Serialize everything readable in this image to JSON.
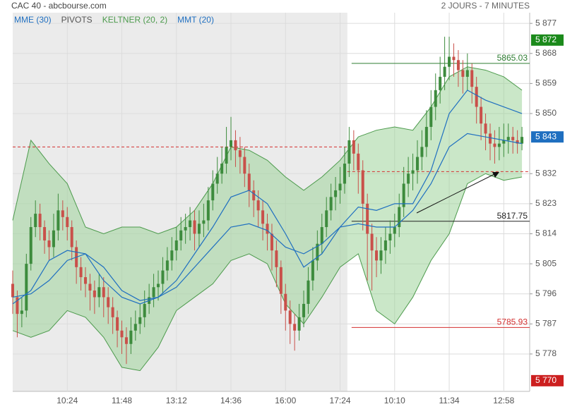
{
  "chart_data": {
    "type": "candlestick",
    "title": "CAC 40 - abcbourse.com",
    "subtitle": "2 JOURS - 7 MINUTES",
    "xlim": [
      0,
      113.7
    ],
    "ylim": [
      5766.8,
      5880.2
    ],
    "xticks": [
      {
        "value": 12,
        "label": "10:24"
      },
      {
        "value": 24,
        "label": "11:48"
      },
      {
        "value": 36,
        "label": "13:12"
      },
      {
        "value": 48,
        "label": "14:36"
      },
      {
        "value": 60,
        "label": "16:00"
      },
      {
        "value": 72,
        "label": "17:24"
      },
      {
        "value": 84,
        "label": "10:10"
      },
      {
        "value": 96,
        "label": "11:34"
      },
      {
        "value": 108,
        "label": "12:58"
      }
    ],
    "yticks": [
      {
        "value": 5778,
        "label": "5 778"
      },
      {
        "value": 5787,
        "label": "5 787"
      },
      {
        "value": 5796,
        "label": "5 796"
      },
      {
        "value": 5805,
        "label": "5 805"
      },
      {
        "value": 5814,
        "label": "5 814"
      },
      {
        "value": 5823,
        "label": "5 823"
      },
      {
        "value": 5832,
        "label": "5 832"
      },
      {
        "value": 5850,
        "label": "5 850"
      },
      {
        "value": 5859,
        "label": "5 859"
      },
      {
        "value": 5868,
        "label": "5 868"
      },
      {
        "value": 5877,
        "label": "5 877"
      }
    ],
    "grid": true,
    "up_color": "#3d8b3d",
    "down_color": "#c9504a",
    "candles": {
      "open": [
        5799,
        5795,
        5790,
        5791,
        5805,
        5816,
        5820,
        5816,
        5812,
        5810,
        5815,
        5821,
        5819,
        5816,
        5810,
        5804,
        5801,
        5799,
        5797,
        5795,
        5798,
        5795,
        5792,
        5789,
        5785,
        5783,
        5781,
        5785,
        5787,
        5789,
        5793,
        5795,
        5798,
        5799,
        5803,
        5806,
        5809,
        5812,
        5815,
        5816,
        5818,
        5814,
        5817,
        5818,
        5824,
        5829,
        5832,
        5835,
        5840,
        5842,
        5839,
        5837,
        5832,
        5827,
        5824,
        5821,
        5817,
        5814,
        5809,
        5804,
        5796,
        5791,
        5787,
        5785,
        5789,
        5793,
        5800,
        5806,
        5811,
        5816,
        5821,
        5825,
        5827,
        5829,
        5835,
        5842,
        5838,
        5833,
        5823,
        5814,
        5809,
        5806,
        5809,
        5812,
        5814,
        5816,
        5822,
        5829,
        5832,
        5833,
        5837,
        5840,
        5846,
        5852,
        5857,
        5861,
        5864,
        5867,
        5866,
        5863,
        5861,
        5863,
        5858,
        5852,
        5847,
        5844,
        5841,
        5840,
        5841,
        5842,
        5843,
        5842,
        5841
      ],
      "high": [
        5803,
        5797,
        5795,
        5808,
        5819,
        5824,
        5823,
        5818,
        5815,
        5820,
        5826,
        5824,
        5822,
        5818,
        5812,
        5807,
        5804,
        5802,
        5800,
        5802,
        5801,
        5798,
        5795,
        5791,
        5788,
        5786,
        5789,
        5791,
        5793,
        5797,
        5799,
        5802,
        5803,
        5807,
        5810,
        5813,
        5816,
        5819,
        5820,
        5822,
        5821,
        5821,
        5823,
        5828,
        5833,
        5837,
        5840,
        5846,
        5849,
        5845,
        5843,
        5840,
        5835,
        5830,
        5827,
        5824,
        5820,
        5817,
        5812,
        5806,
        5799,
        5794,
        5790,
        5793,
        5797,
        5804,
        5810,
        5815,
        5820,
        5825,
        5829,
        5831,
        5834,
        5840,
        5846,
        5845,
        5841,
        5836,
        5826,
        5817,
        5813,
        5813,
        5816,
        5818,
        5820,
        5826,
        5834,
        5837,
        5838,
        5842,
        5845,
        5851,
        5857,
        5862,
        5867,
        5873,
        5873,
        5871,
        5869,
        5866,
        5868,
        5865,
        5861,
        5855,
        5850,
        5847,
        5845,
        5846,
        5847,
        5847,
        5846,
        5845,
        5846
      ],
      "low": [
        5790,
        5783,
        5786,
        5789,
        5803,
        5813,
        5812,
        5808,
        5806,
        5807,
        5812,
        5815,
        5812,
        5806,
        5799,
        5797,
        5795,
        5791,
        5790,
        5792,
        5789,
        5787,
        5784,
        5780,
        5778,
        5775,
        5778,
        5782,
        5784,
        5786,
        5790,
        5792,
        5794,
        5796,
        5800,
        5803,
        5806,
        5809,
        5811,
        5812,
        5809,
        5810,
        5813,
        5815,
        5821,
        5826,
        5829,
        5832,
        5836,
        5834,
        5832,
        5828,
        5822,
        5819,
        5816,
        5812,
        5809,
        5803,
        5798,
        5790,
        5785,
        5781,
        5779,
        5782,
        5786,
        5790,
        5797,
        5803,
        5808,
        5813,
        5818,
        5821,
        5823,
        5826,
        5831,
        5833,
        5826,
        5815,
        5800,
        5797,
        5801,
        5802,
        5805,
        5808,
        5810,
        5813,
        5819,
        5825,
        5827,
        5829,
        5833,
        5837,
        5842,
        5848,
        5853,
        5857,
        5860,
        5861,
        5858,
        5856,
        5857,
        5853,
        5847,
        5842,
        5839,
        5836,
        5835,
        5836,
        5837,
        5838,
        5838,
        5838,
        5839
      ],
      "close": [
        5795,
        5790,
        5791,
        5805,
        5816,
        5820,
        5816,
        5812,
        5810,
        5815,
        5821,
        5819,
        5816,
        5810,
        5804,
        5801,
        5799,
        5797,
        5795,
        5798,
        5795,
        5792,
        5789,
        5785,
        5783,
        5781,
        5785,
        5787,
        5789,
        5793,
        5795,
        5798,
        5799,
        5803,
        5806,
        5809,
        5812,
        5815,
        5816,
        5818,
        5814,
        5817,
        5818,
        5824,
        5829,
        5832,
        5835,
        5840,
        5842,
        5839,
        5837,
        5832,
        5827,
        5824,
        5821,
        5817,
        5814,
        5809,
        5804,
        5796,
        5791,
        5787,
        5785,
        5789,
        5793,
        5800,
        5806,
        5811,
        5816,
        5821,
        5825,
        5827,
        5829,
        5835,
        5842,
        5838,
        5833,
        5823,
        5814,
        5809,
        5806,
        5809,
        5812,
        5814,
        5816,
        5822,
        5829,
        5832,
        5833,
        5837,
        5840,
        5846,
        5852,
        5857,
        5861,
        5864,
        5867,
        5866,
        5863,
        5861,
        5863,
        5858,
        5852,
        5847,
        5844,
        5841,
        5840,
        5841,
        5842,
        5843,
        5842,
        5841,
        5843
      ]
    },
    "indicator_x": [
      0,
      4,
      8,
      12,
      16,
      20,
      24,
      28,
      32,
      36,
      40,
      44,
      48,
      52,
      56,
      60,
      64,
      68,
      72,
      76,
      80,
      84,
      88,
      92,
      96,
      100,
      104,
      108,
      112
    ],
    "series": [
      {
        "name": "MME (30)",
        "color": "#1f6fc0",
        "values": [
          5795,
          5796,
          5800,
          5806,
          5808,
          5804,
          5797,
          5794,
          5795,
          5798,
          5804,
          5810,
          5816,
          5817,
          5815,
          5810,
          5808,
          5811,
          5816,
          5817,
          5816,
          5816,
          5821,
          5829,
          5840,
          5844,
          5843,
          5842,
          5841
        ]
      },
      {
        "name": "MMT (20)",
        "color": "#1f6fc0",
        "values": [
          5793,
          5797,
          5806,
          5809,
          5808,
          5800,
          5795,
          5793,
          5795,
          5800,
          5808,
          5816,
          5825,
          5827,
          5823,
          5814,
          5804,
          5808,
          5816,
          5822,
          5821,
          5823,
          5823,
          5833,
          5850,
          5857,
          5854,
          5852,
          5850
        ]
      }
    ],
    "keltner": {
      "name": "KELTNER (20, 2)",
      "color": "#4c9a4c",
      "fill": "#9fd49a",
      "upper": [
        5818,
        5842,
        5835,
        5829,
        5816,
        5814,
        5816,
        5816,
        5814,
        5816,
        5821,
        5829,
        5840,
        5839,
        5836,
        5831,
        5827,
        5831,
        5836,
        5843,
        5845,
        5846,
        5845,
        5852,
        5861,
        5864,
        5863,
        5861,
        5857
      ],
      "lower": [
        5785,
        5783,
        5785,
        5791,
        5789,
        5783,
        5774,
        5773,
        5780,
        5791,
        5795,
        5799,
        5806,
        5808,
        5805,
        5793,
        5787,
        5795,
        5804,
        5808,
        5791,
        5787,
        5795,
        5806,
        5814,
        5829,
        5832,
        5830,
        5831
      ]
    },
    "pivots": {
      "name": "PIVOTS",
      "color": "#555555",
      "levels": [
        {
          "value": 5865.03,
          "color": "#2e7d32"
        },
        {
          "value": 5817.75,
          "color": "#222222"
        },
        {
          "value": 5785.93,
          "color": "#d32f2f"
        }
      ]
    },
    "reference_lines": [
      {
        "value": 5840,
        "color": "#d32f2f"
      },
      {
        "value": 5832.6,
        "color": "#d32f2f"
      }
    ],
    "price_labels": [
      {
        "value": 5872,
        "label": "5 872",
        "color": "#1b8a1b"
      },
      {
        "value": 5843,
        "label": "5 843",
        "color": "#1f6fc0"
      },
      {
        "value": 5770,
        "label": "5 770",
        "color": "#cc1f1f"
      }
    ]
  }
}
